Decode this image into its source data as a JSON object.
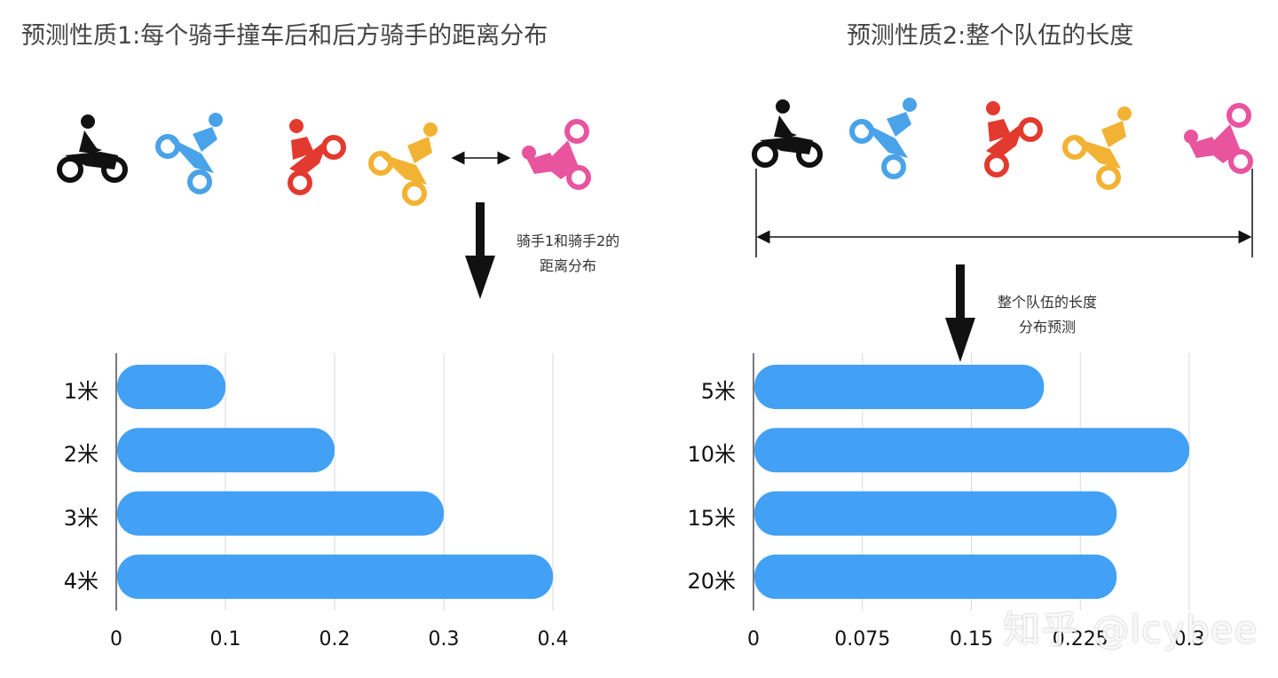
{
  "figure": {
    "left_title": "预测性质1:每个骑手撞车后和后方骑手的距离分布",
    "right_title": "预测性质2:整个队伍的长度",
    "left_note": [
      "骑手1和骑手2的",
      "距离分布"
    ],
    "right_note": [
      "整个队伍的长度",
      "分布预测"
    ],
    "watermark": "知乎 @lcybee",
    "rider_icons": [
      "motorcycle-rider-icon",
      "dirtbike-rider-icon",
      "wheelie-rider-icon",
      "racer-rider-icon",
      "crashed-rider-icon"
    ],
    "colors": {
      "bar": "#42a0f5",
      "grid": "#d9d9d9",
      "riders": [
        "#111111",
        "#4aa3e8",
        "#e23a2e",
        "#f2b233",
        "#e8559e"
      ]
    }
  },
  "chart_data": [
    {
      "type": "bar",
      "orientation": "horizontal",
      "categories": [
        "1米",
        "2米",
        "3米",
        "4米"
      ],
      "values": [
        0.1,
        0.2,
        0.3,
        0.4
      ],
      "xlim": [
        0,
        0.4
      ],
      "xticks": [
        "0",
        "0.1",
        "0.2",
        "0.3",
        "0.4"
      ],
      "grid": true
    },
    {
      "type": "bar",
      "orientation": "horizontal",
      "categories": [
        "5米",
        "10米",
        "15米",
        "20米"
      ],
      "values": [
        0.2,
        0.3,
        0.25,
        0.25
      ],
      "xlim": [
        0,
        0.3
      ],
      "xticks": [
        "0",
        "0.075",
        "0.15",
        "0.225",
        "0.3"
      ],
      "grid": true
    }
  ]
}
